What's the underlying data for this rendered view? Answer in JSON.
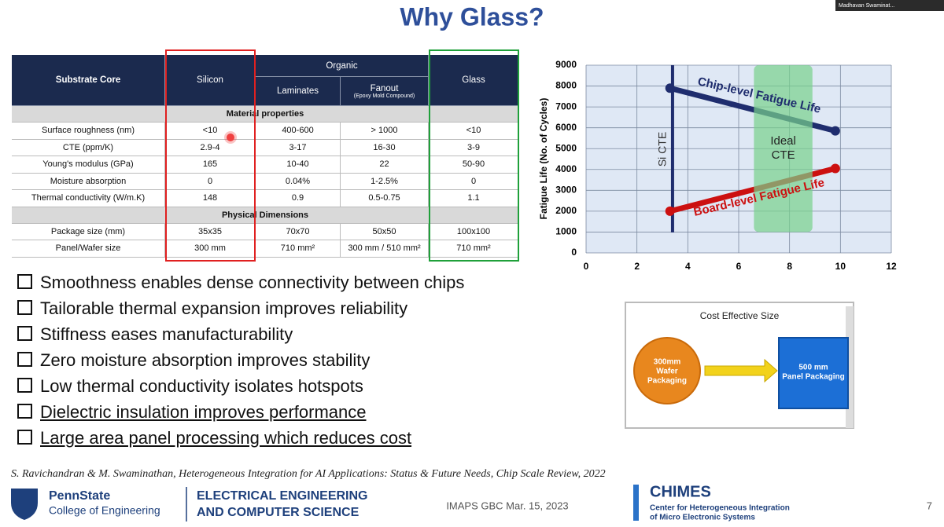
{
  "header": {
    "title": "Why Glass?",
    "participant": "Madhavan Swaminat..."
  },
  "table": {
    "header": {
      "row_label": "Substrate Core",
      "silicon": "Silicon",
      "organic": "Organic",
      "laminates": "Laminates",
      "fanout": "Fanout",
      "fanout_note": "(Epoxy Mold Compound)",
      "glass": "Glass"
    },
    "sections": [
      {
        "title": "Material properties",
        "rows": [
          [
            "Surface roughness (nm)",
            "<10",
            "400-600",
            "> 1000",
            "<10"
          ],
          [
            "CTE (ppm/K)",
            "2.9-4",
            "3-17",
            "16-30",
            "3-9"
          ],
          [
            "Young's modulus (GPa)",
            "165",
            "10-40",
            "22",
            "50-90"
          ],
          [
            "Moisture absorption",
            "0",
            "0.04%",
            "1-2.5%",
            "0"
          ],
          [
            "Thermal conductivity (W/m.K)",
            "148",
            "0.9",
            "0.5-0.75",
            "1.1"
          ]
        ]
      },
      {
        "title": "Physical Dimensions",
        "rows": [
          [
            "Package size (mm)",
            "35x35",
            "70x70",
            "50x50",
            "100x100"
          ],
          [
            "Panel/Wafer size",
            "300 mm",
            "710 mm²",
            "300 mm / 510 mm²",
            "710 mm²"
          ]
        ]
      }
    ]
  },
  "chart": {
    "type": "line",
    "ylabel": "Fatigue Life (No. of Cycles)",
    "xlim": [
      0,
      12
    ],
    "xticks": [
      0,
      2,
      4,
      6,
      8,
      10,
      12
    ],
    "ylim": [
      0,
      9000
    ],
    "yticks": [
      0,
      1000,
      2000,
      3000,
      4000,
      5000,
      6000,
      7000,
      8000,
      9000
    ],
    "grid": true,
    "series": [
      {
        "name": "Chip-level Fatigue Life",
        "color": "#1f2d6e",
        "x": [
          3.3,
          9.8
        ],
        "values": [
          7900,
          5850
        ]
      },
      {
        "name": "Board-level Fatigue Life",
        "color": "#cc1010",
        "x": [
          3.3,
          9.8
        ],
        "values": [
          2000,
          4050
        ]
      }
    ],
    "si_cte": {
      "text": "Si CTE",
      "x": 3.4
    },
    "ideal_cte": {
      "text": [
        "Ideal",
        "CTE"
      ],
      "x": [
        6.6,
        8.9
      ],
      "y": [
        1000,
        9000
      ]
    }
  },
  "bullets": [
    "Smoothness enables dense connectivity between chips",
    "Tailorable thermal expansion improves reliability",
    "Stiffness eases manufacturability",
    "Zero moisture absorption improves stability",
    "Low thermal conductivity isolates hotspots",
    "Dielectric insulation improves performance",
    "Large area panel processing which reduces cost"
  ],
  "diagram": {
    "title": "Cost Effective Size",
    "source": [
      "300mm",
      "Wafer",
      "Packaging"
    ],
    "target": [
      "500 mm",
      "Panel Packaging"
    ]
  },
  "citation": "S. Ravichandran & M. Swaminathan, Heterogeneous Integration for AI Applications: Status & Future Needs, Chip Scale Review, 2022",
  "footer": {
    "university": "PennState",
    "college": "College of Engineering",
    "department": [
      "ELECTRICAL ENGINEERING",
      "AND COMPUTER SCIENCE"
    ],
    "event": "IMAPS GBC Mar. 15, 2023",
    "center": "CHIMES",
    "center_name": [
      "Center for Heterogeneous Integration",
      "of Micro Electronic Systems"
    ],
    "page": "7"
  }
}
